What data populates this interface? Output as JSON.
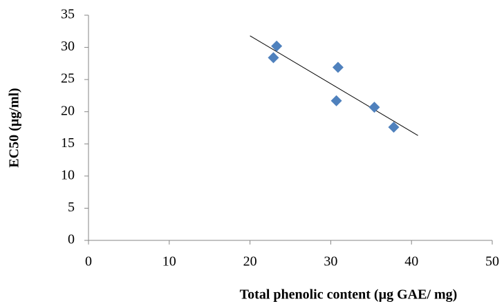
{
  "chart_data": {
    "type": "scatter",
    "x_label": "Total phenolic content (µg GAE/ mg)",
    "y_label": "EC50 (µg/ml)",
    "series": [
      {
        "color": "#4f81bd",
        "x": [
          22.9,
          23.3,
          30.9,
          30.7,
          35.4,
          37.8
        ],
        "values": [
          28.4,
          30.2,
          26.9,
          21.7,
          20.7,
          17.6
        ]
      }
    ],
    "trendline": {
      "color": "#000000",
      "x": [
        20,
        40.8
      ],
      "y": [
        31.8,
        16.3
      ]
    },
    "xlim": [
      0,
      50
    ],
    "xticks": [
      0,
      10,
      20,
      30,
      40,
      50
    ],
    "ylim": [
      0,
      35
    ],
    "yticks": [
      0,
      5,
      10,
      15,
      20,
      25,
      30,
      35
    ],
    "grid": false
  }
}
